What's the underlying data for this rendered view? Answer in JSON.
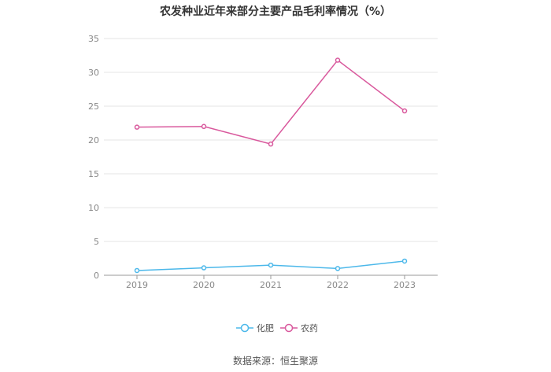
{
  "chart_data": {
    "type": "line",
    "title": "农发种业近年来部分主要产品毛利率情况（%）",
    "x": [
      "2019",
      "2020",
      "2021",
      "2022",
      "2023"
    ],
    "ylim": [
      0,
      35
    ],
    "yticks": [
      "0",
      "5",
      "10",
      "15",
      "20",
      "25",
      "30",
      "35"
    ],
    "yticks_values": [
      0,
      5,
      10,
      15,
      20,
      25,
      30,
      35
    ],
    "grid": true,
    "legend_position": "bottom-center",
    "series": [
      {
        "name": "化肥",
        "color": "#4cb8ea",
        "values": [
          0.7,
          1.1,
          1.5,
          1.0,
          2.1
        ]
      },
      {
        "name": "农药",
        "color": "#d9599d",
        "values": [
          21.9,
          22.0,
          19.4,
          31.8,
          24.3
        ]
      }
    ]
  },
  "footer": {
    "source": "数据来源：恒生聚源"
  }
}
